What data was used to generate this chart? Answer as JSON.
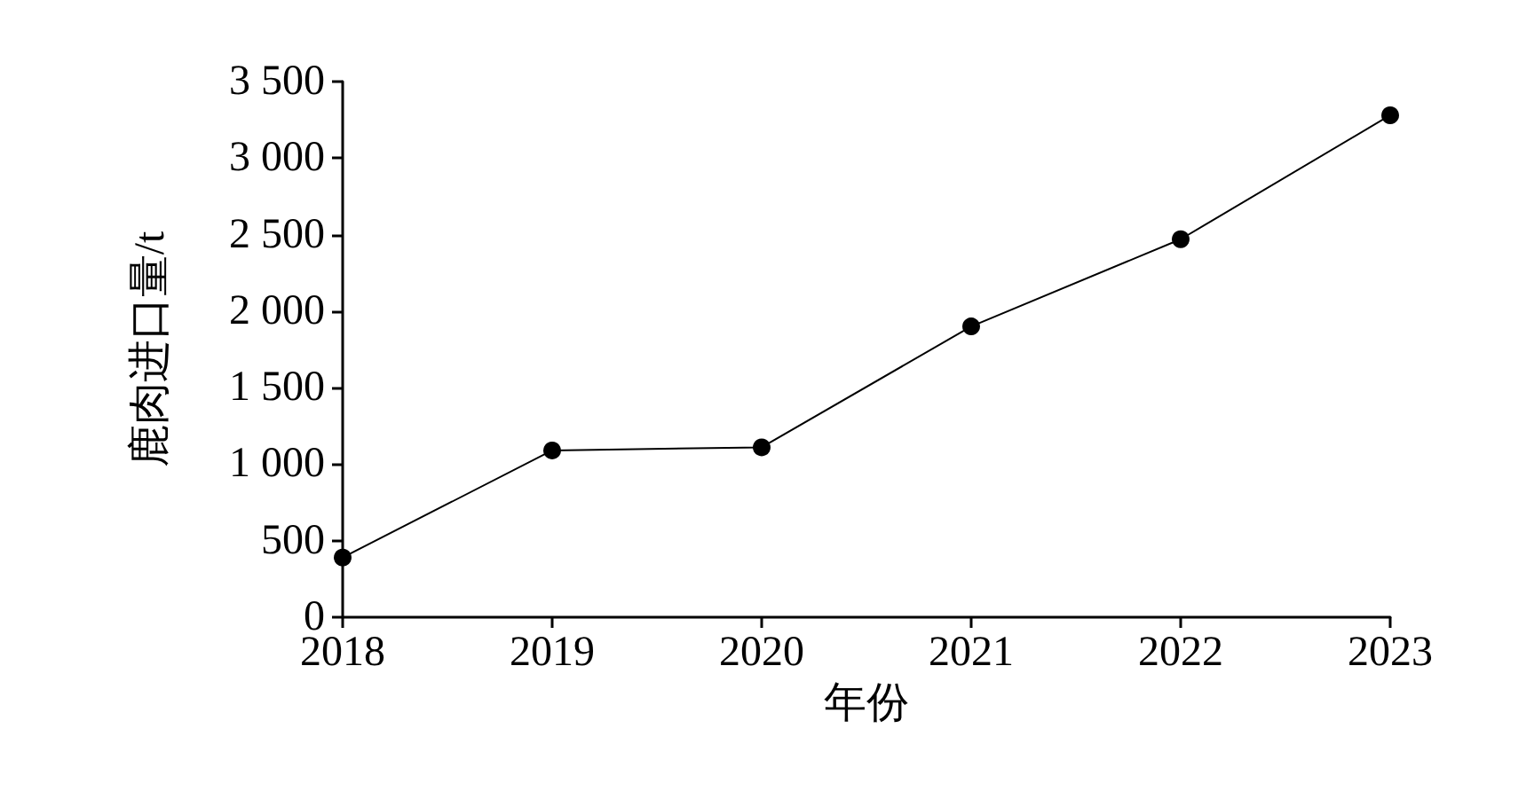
{
  "chart_data": {
    "type": "line",
    "xlabel": "年份",
    "ylabel": "鹿肉进口量/t",
    "x": [
      2018,
      2019,
      2020,
      2021,
      2022,
      2023
    ],
    "series": [
      {
        "color": "#000000",
        "values": [
          390,
          1090,
          1110,
          1900,
          2470,
          3280
        ]
      }
    ],
    "xlim": [
      2018,
      2023
    ],
    "xticks": [
      2018,
      2019,
      2020,
      2021,
      2022,
      2023
    ],
    "ylim": [
      0,
      3500
    ],
    "yticks": [
      0,
      500,
      {
        "value": 1000,
        "label": "1 000"
      },
      {
        "value": 1500,
        "label": "1 500"
      },
      {
        "value": 2000,
        "label": "2 000"
      },
      {
        "value": 2500,
        "label": "2 500"
      },
      {
        "value": 3000,
        "label": "3 000"
      },
      {
        "value": 3500,
        "label": "3 500"
      }
    ],
    "marker": "circle",
    "line_style": "solid"
  }
}
